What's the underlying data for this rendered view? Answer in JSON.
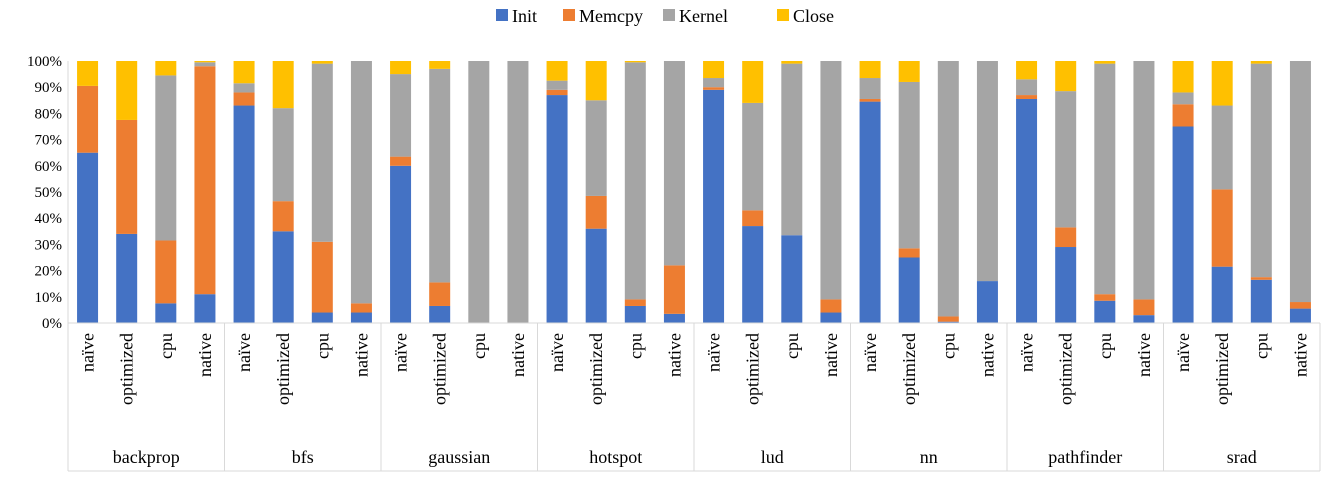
{
  "chart_data": {
    "type": "bar",
    "stacked": true,
    "title": "",
    "xlabel": "",
    "ylabel": "",
    "ylim": [
      0,
      100
    ],
    "yticks": [
      "0%",
      "10%",
      "20%",
      "30%",
      "40%",
      "50%",
      "60%",
      "70%",
      "80%",
      "90%",
      "100%"
    ],
    "legend_position": "top-center",
    "grid": false,
    "groups": [
      "backprop",
      "bfs",
      "gaussian",
      "hotspot",
      "lud",
      "nn",
      "pathfinder",
      "srad"
    ],
    "variants": [
      "naïve",
      "optimized",
      "cpu",
      "native"
    ],
    "series": [
      {
        "name": "Init",
        "color": "#4472C4",
        "values": [
          65,
          34,
          7.5,
          11,
          83,
          35,
          4,
          4,
          60,
          6.5,
          0,
          0,
          87,
          36,
          6.5,
          3.5,
          89,
          37,
          33.5,
          4,
          84.5,
          25,
          0.5,
          16,
          85.5,
          29,
          8.5,
          3,
          75,
          21.5,
          16.5,
          5.5
        ]
      },
      {
        "name": "Memcpy",
        "color": "#ED7D31",
        "values": [
          25.5,
          43.5,
          24,
          87,
          5,
          11.5,
          27,
          3.5,
          3.5,
          9,
          0,
          0,
          2,
          12.5,
          2.5,
          18.5,
          1,
          6,
          0,
          5,
          1,
          3.5,
          2,
          0,
          1.5,
          7.5,
          2.5,
          6,
          8.5,
          29.5,
          1,
          2.5
        ]
      },
      {
        "name": "Kernel",
        "color": "#A5A5A5",
        "values": [
          0,
          0,
          63,
          1.5,
          3.5,
          35.5,
          68,
          92.5,
          31.5,
          81.5,
          100,
          100,
          3.5,
          36.5,
          90.5,
          78,
          3.5,
          41,
          65.5,
          91,
          8,
          63.5,
          97.5,
          84,
          6,
          52,
          88,
          91,
          4.5,
          32,
          81.5,
          92
        ]
      },
      {
        "name": "Close",
        "color": "#FFC000",
        "values": [
          9.5,
          22.5,
          5.5,
          0.5,
          8.5,
          18,
          1,
          0,
          5,
          3,
          0,
          0,
          7.5,
          15,
          0.5,
          0,
          6.5,
          16,
          1,
          0,
          6.5,
          8,
          0,
          0,
          7,
          11.5,
          1,
          0,
          12,
          17,
          1,
          0
        ]
      }
    ]
  }
}
